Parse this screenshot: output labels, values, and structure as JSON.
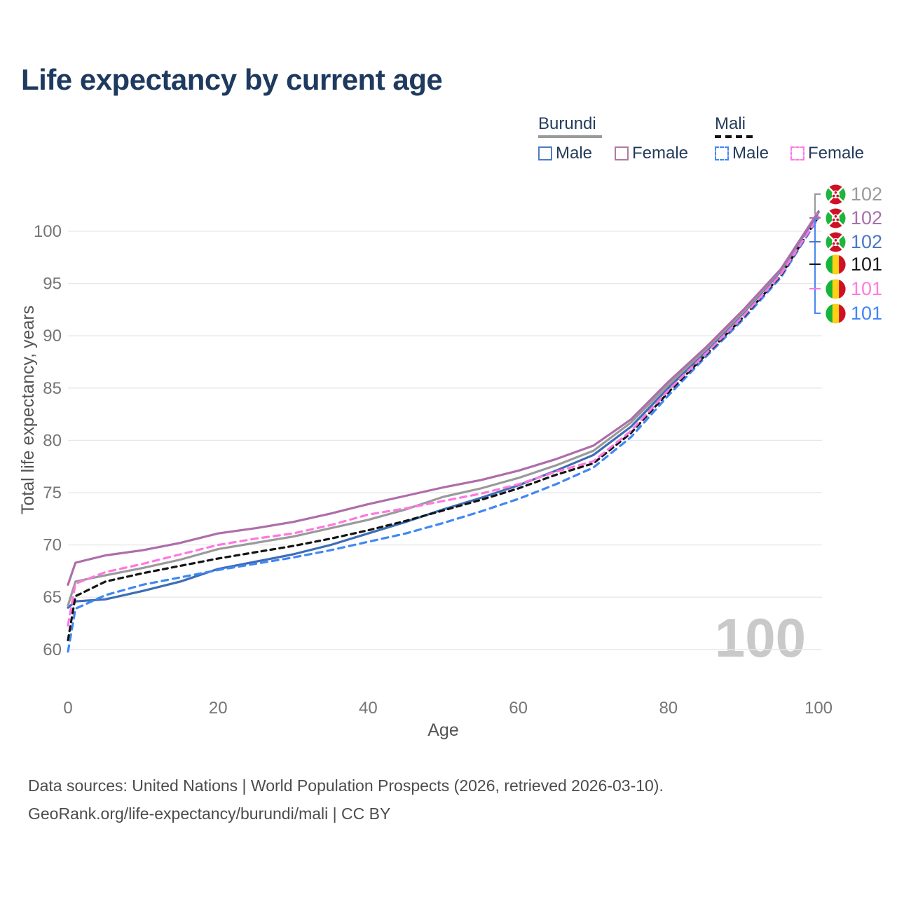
{
  "title": "Life expectancy by current age",
  "legend": {
    "groups": [
      {
        "country": "Burundi",
        "line_style": "solid",
        "underline_color": "#9a9a9a",
        "items": [
          {
            "label": "Male",
            "color": "#4e7bc4",
            "dashed": false
          },
          {
            "label": "Female",
            "color": "#b279a7",
            "dashed": false
          }
        ]
      },
      {
        "country": "Mali",
        "line_style": "dashed",
        "underline_color": "#111111",
        "items": [
          {
            "label": "Male",
            "color": "#3f87f5",
            "dashed": true
          },
          {
            "label": "Female",
            "color": "#ff77e1",
            "dashed": true
          }
        ]
      }
    ]
  },
  "chart_data": {
    "type": "line",
    "title": "Life expectancy by current age",
    "xlabel": "Age",
    "ylabel": "Total life expectancy, years",
    "x_ticks": [
      0,
      20,
      40,
      60,
      80,
      100
    ],
    "y_ticks": [
      60,
      65,
      70,
      75,
      80,
      85,
      90,
      95,
      100
    ],
    "xlim": [
      0,
      100
    ],
    "ylim": [
      59,
      104
    ],
    "grid": true,
    "legend_position": "top-right",
    "watermark": "100",
    "ages": [
      0,
      1,
      5,
      10,
      15,
      20,
      25,
      30,
      35,
      40,
      45,
      50,
      55,
      60,
      65,
      70,
      75,
      80,
      85,
      90,
      95,
      100
    ],
    "series": [
      {
        "name": "Burundi Male",
        "country": "Burundi",
        "sex": "male",
        "color": "#3d6db6",
        "dash": null,
        "values": [
          64.0,
          64.6,
          64.8,
          65.6,
          66.5,
          67.7,
          68.4,
          69.1,
          70.0,
          71.1,
          72.2,
          73.4,
          74.5,
          75.7,
          77.1,
          78.6,
          81.3,
          85.0,
          88.5,
          92.2,
          96.2,
          101.8
        ]
      },
      {
        "name": "Burundi Both sexes",
        "country": "Burundi",
        "sex": "both",
        "color": "#9a9a9a",
        "dash": null,
        "values": [
          64.2,
          66.5,
          67.1,
          67.8,
          68.6,
          69.6,
          70.2,
          70.8,
          71.6,
          72.4,
          73.4,
          74.6,
          75.4,
          76.4,
          77.6,
          79.0,
          81.7,
          85.3,
          88.7,
          92.3,
          96.3,
          101.9
        ]
      },
      {
        "name": "Burundi Female",
        "country": "Burundi",
        "sex": "female",
        "color": "#ae6daa",
        "dash": null,
        "values": [
          66.2,
          68.3,
          69.0,
          69.5,
          70.2,
          71.1,
          71.6,
          72.2,
          73.0,
          73.9,
          74.7,
          75.5,
          76.2,
          77.1,
          78.2,
          79.5,
          82.0,
          85.6,
          88.9,
          92.5,
          96.4,
          101.9
        ]
      },
      {
        "name": "Mali Male",
        "country": "Mali",
        "sex": "male",
        "color": "#3f87f5",
        "dash": "9 7",
        "values": [
          59.8,
          63.9,
          65.2,
          66.2,
          66.9,
          67.6,
          68.2,
          68.8,
          69.5,
          70.3,
          71.1,
          72.1,
          73.2,
          74.4,
          75.8,
          77.4,
          80.3,
          84.3,
          88.0,
          91.6,
          95.6,
          101.3
        ]
      },
      {
        "name": "Mali Both sexes",
        "country": "Mali",
        "sex": "both",
        "color": "#141414",
        "dash": "7 6",
        "values": [
          60.9,
          65.1,
          66.5,
          67.3,
          68.0,
          68.7,
          69.3,
          69.9,
          70.6,
          71.4,
          72.3,
          73.3,
          74.3,
          75.4,
          76.7,
          77.8,
          80.7,
          84.6,
          88.2,
          91.8,
          95.8,
          101.4
        ]
      },
      {
        "name": "Mali Female",
        "country": "Mali",
        "sex": "female",
        "color": "#ff77e1",
        "dash": "9 7",
        "values": [
          62.3,
          66.3,
          67.4,
          68.2,
          69.1,
          70.0,
          70.6,
          71.1,
          71.9,
          72.9,
          73.5,
          74.2,
          74.9,
          75.8,
          77.0,
          78.0,
          80.9,
          84.8,
          88.3,
          91.9,
          95.9,
          101.4
        ]
      }
    ],
    "right_labels": [
      {
        "value": "102",
        "color": "#9a9a9a",
        "flag": "burundi"
      },
      {
        "value": "102",
        "color": "#a96fa9",
        "flag": "burundi"
      },
      {
        "value": "102",
        "color": "#4a77c4",
        "flag": "burundi"
      },
      {
        "value": "101",
        "color": "#1a1a1a",
        "flag": "mali"
      },
      {
        "value": "101",
        "color": "#ff7be0",
        "flag": "mali"
      },
      {
        "value": "101",
        "color": "#3f87f5",
        "flag": "mali"
      }
    ]
  },
  "footer": {
    "line1": "Data sources: United Nations | World Population Prospects (2026, retrieved 2026-03-10).",
    "line2": "GeoRank.org/life-expectancy/burundi/mali | CC BY"
  }
}
